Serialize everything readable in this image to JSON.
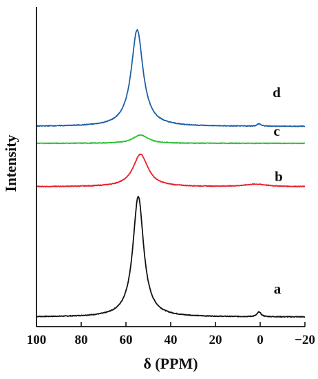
{
  "chart_data": {
    "type": "line",
    "title": "",
    "xlabel": "δ (PPM)",
    "ylabel": "Intensity",
    "xlim": [
      100,
      -20
    ],
    "x_reversed": true,
    "x_ticks": [
      100,
      80,
      60,
      40,
      20,
      0,
      -20
    ],
    "x_tick_labels": [
      "100",
      "80",
      "60",
      "40",
      "20",
      "0",
      "−20"
    ],
    "y_ticks_shown": false,
    "grid": false,
    "legend": "inline labels at right",
    "y_unit": "arbitrary intensity (stacked traces)",
    "series": [
      {
        "label": "a",
        "color": "#111111",
        "baseline": 0,
        "peaks": [
          {
            "center": 54.5,
            "height": 1.0,
            "width": 2.9
          },
          {
            "center": 0.5,
            "height": 0.04,
            "width": 1.0
          }
        ]
      },
      {
        "label": "b",
        "color": "#e8202a",
        "baseline": 1.08,
        "peaks": [
          {
            "center": 53.5,
            "height": 0.27,
            "width": 4.0
          },
          {
            "center": 2.0,
            "height": 0.02,
            "width": 6.0
          }
        ]
      },
      {
        "label": "c",
        "color": "#2fbf3a",
        "baseline": 1.44,
        "peaks": [
          {
            "center": 53.5,
            "height": 0.07,
            "width": 4.0
          }
        ]
      },
      {
        "label": "d",
        "color": "#1f5fa8",
        "baseline": 1.58,
        "peaks": [
          {
            "center": 55.0,
            "height": 0.8,
            "width": 3.2
          },
          {
            "center": 0.5,
            "height": 0.02,
            "width": 1.0
          }
        ]
      }
    ]
  }
}
